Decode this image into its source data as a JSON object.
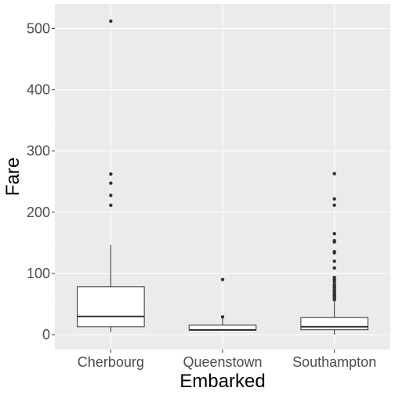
{
  "chart_data": {
    "type": "box",
    "xlabel": "Embarked",
    "ylabel": "Fare",
    "ylim": [
      -25,
      540
    ],
    "yticks": [
      0,
      100,
      200,
      300,
      400,
      500
    ],
    "grid": true,
    "categories": [
      "Cherbourg",
      "Queenstown",
      "Southampton"
    ],
    "boxes": [
      {
        "category": "Cherbourg",
        "q1": 13.0,
        "median": 29.7,
        "q3": 78.3,
        "whisker_low": 4.0,
        "whisker_high": 146.5,
        "outliers": [
          211.3,
          227.5,
          247.5,
          262.4,
          512.3
        ]
      },
      {
        "category": "Queenstown",
        "q1": 7.75,
        "median": 7.75,
        "q3": 15.5,
        "whisker_low": 6.75,
        "whisker_high": 29.1,
        "outliers": [
          29.1,
          90.0
        ]
      },
      {
        "category": "Southampton",
        "q1": 8.05,
        "median": 13.0,
        "q3": 27.9,
        "whisker_low": 0.0,
        "whisker_high": 56.5,
        "outliers": [
          57.0,
          59.4,
          61.2,
          63.4,
          65.0,
          66.6,
          69.55,
          71.0,
          73.5,
          76.7,
          77.3,
          79.6,
          82.2,
          86.5,
          90.0,
          93.5,
          108.9,
          120.0,
          133.65,
          135.6,
          151.55,
          153.5,
          164.9,
          211.5,
          221.8,
          263.0
        ]
      }
    ],
    "colors": {
      "panel": "#ebebeb",
      "grid_major": "#ffffff",
      "grid_minor": "#f2f2f2",
      "box_fill": "#ffffff",
      "box_stroke": "#333333",
      "outlier": "#333333",
      "tick": "#333333",
      "tick_label": "#4d4d4d"
    }
  }
}
